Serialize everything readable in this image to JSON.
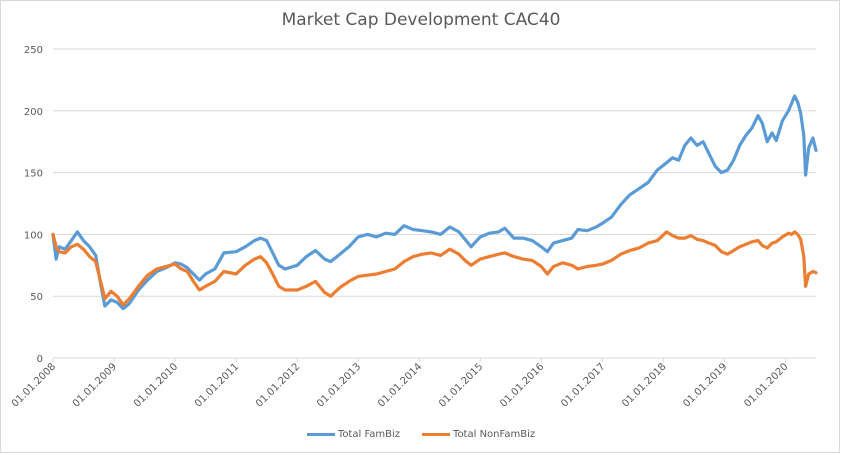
{
  "chart_data": {
    "type": "line",
    "title": "Market Cap Development CAC40",
    "xlabel": "",
    "ylabel": "",
    "ylim": [
      0,
      250
    ],
    "yticks": [
      0,
      50,
      100,
      150,
      200,
      250
    ],
    "ytick_labels": [
      "0",
      "50",
      "100",
      "150",
      "200",
      "250"
    ],
    "xlim": [
      2008.0,
      2020.5
    ],
    "xticks": [
      2008,
      2009,
      2010,
      2011,
      2012,
      2013,
      2014,
      2015,
      2016,
      2017,
      2018,
      2019,
      2020
    ],
    "xtick_labels": [
      "01.01.2008",
      "01.01.2009",
      "01.01.2010",
      "01.01.2011",
      "01.01.2012",
      "01.01.2013",
      "01.01.2014",
      "01.01.2015",
      "01.01.2016",
      "01.01.2017",
      "01.01.2018",
      "01.01.2019",
      "01.01.2020"
    ],
    "grid": true,
    "legend_position": "bottom",
    "x": [
      2008.0,
      2008.05,
      2008.1,
      2008.2,
      2008.3,
      2008.4,
      2008.5,
      2008.6,
      2008.7,
      2008.78,
      2008.85,
      2008.95,
      2009.05,
      2009.15,
      2009.25,
      2009.4,
      2009.55,
      2009.7,
      2009.85,
      2010.0,
      2010.1,
      2010.2,
      2010.3,
      2010.4,
      2010.5,
      2010.65,
      2010.8,
      2011.0,
      2011.15,
      2011.3,
      2011.4,
      2011.5,
      2011.6,
      2011.7,
      2011.8,
      2012.0,
      2012.15,
      2012.3,
      2012.45,
      2012.55,
      2012.7,
      2012.85,
      2013.0,
      2013.15,
      2013.3,
      2013.45,
      2013.6,
      2013.75,
      2013.9,
      2014.05,
      2014.2,
      2014.35,
      2014.5,
      2014.65,
      2014.75,
      2014.85,
      2015.0,
      2015.15,
      2015.3,
      2015.4,
      2015.55,
      2015.7,
      2015.85,
      2016.0,
      2016.1,
      2016.2,
      2016.35,
      2016.5,
      2016.6,
      2016.75,
      2016.9,
      2017.0,
      2017.15,
      2017.3,
      2017.45,
      2017.6,
      2017.75,
      2017.9,
      2018.05,
      2018.15,
      2018.25,
      2018.35,
      2018.45,
      2018.55,
      2018.65,
      2018.75,
      2018.85,
      2018.95,
      2019.05,
      2019.15,
      2019.25,
      2019.35,
      2019.45,
      2019.55,
      2019.62,
      2019.7,
      2019.78,
      2019.85,
      2019.95,
      2020.05,
      2020.1,
      2020.15,
      2020.2,
      2020.25,
      2020.3,
      2020.33,
      2020.38,
      2020.45,
      2020.5
    ],
    "series": [
      {
        "name": "Total FamBiz",
        "color": "#5b9bd5",
        "values": [
          100,
          80,
          90,
          88,
          95,
          102,
          95,
          90,
          83,
          60,
          42,
          47,
          45,
          40,
          44,
          55,
          63,
          70,
          73,
          77,
          76,
          73,
          68,
          63,
          68,
          72,
          85,
          86,
          90,
          95,
          97,
          95,
          85,
          75,
          72,
          75,
          82,
          87,
          80,
          78,
          84,
          90,
          98,
          100,
          98,
          101,
          100,
          107,
          104,
          103,
          102,
          100,
          106,
          102,
          96,
          90,
          98,
          101,
          102,
          105,
          97,
          97,
          95,
          90,
          86,
          93,
          95,
          97,
          104,
          103,
          106,
          109,
          114,
          124,
          132,
          137,
          142,
          152,
          158,
          162,
          160,
          172,
          178,
          172,
          175,
          165,
          155,
          150,
          152,
          160,
          172,
          180,
          186,
          196,
          190,
          175,
          182,
          176,
          192,
          200,
          206,
          212,
          207,
          198,
          180,
          148,
          170,
          178,
          168
        ]
      },
      {
        "name": "Total NonFamBiz",
        "color": "#ed7d31",
        "values": [
          100,
          90,
          86,
          85,
          90,
          92,
          88,
          82,
          78,
          62,
          48,
          54,
          50,
          43,
          48,
          58,
          67,
          72,
          74,
          76,
          72,
          70,
          62,
          55,
          58,
          62,
          70,
          68,
          75,
          80,
          82,
          77,
          68,
          58,
          55,
          55,
          58,
          62,
          53,
          50,
          57,
          62,
          66,
          67,
          68,
          70,
          72,
          78,
          82,
          84,
          85,
          83,
          88,
          84,
          79,
          75,
          80,
          82,
          84,
          85,
          82,
          80,
          79,
          74,
          68,
          74,
          77,
          75,
          72,
          74,
          75,
          76,
          79,
          84,
          87,
          89,
          93,
          95,
          102,
          99,
          97,
          97,
          99,
          96,
          95,
          93,
          91,
          86,
          84,
          87,
          90,
          92,
          94,
          95,
          91,
          89,
          93,
          94,
          98,
          101,
          100,
          102,
          100,
          96,
          82,
          58,
          68,
          70,
          69
        ]
      }
    ]
  }
}
